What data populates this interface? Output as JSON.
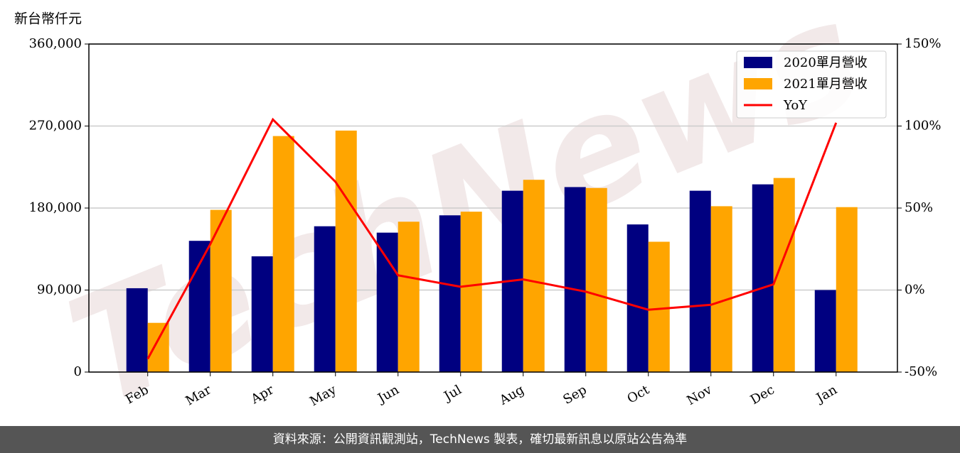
{
  "chart_data": {
    "type": "bar",
    "ylabel": "新台幣仟元",
    "watermark": "TechNews",
    "categories": [
      "Feb",
      "Mar",
      "Apr",
      "May",
      "Jun",
      "Jul",
      "Aug",
      "Sep",
      "Oct",
      "Nov",
      "Dec",
      "Jan"
    ],
    "series": [
      {
        "name": "2020單月營收",
        "color": "#000080",
        "values": [
          92000,
          144000,
          127000,
          160000,
          153000,
          172000,
          199000,
          203000,
          162000,
          199000,
          206000,
          90000
        ]
      },
      {
        "name": "2021單月營收",
        "color": "#ffa500",
        "values": [
          54000,
          178000,
          259000,
          265000,
          165000,
          176000,
          211000,
          202000,
          143000,
          182000,
          213000,
          181000
        ]
      },
      {
        "name": "YoY",
        "type": "line",
        "axis": "y2",
        "color": "#ff0000",
        "values": [
          -42,
          28,
          104,
          66,
          9,
          2,
          6.5,
          -1,
          -12,
          -9,
          3.5,
          102
        ]
      }
    ],
    "ylim": [
      0,
      360000
    ],
    "yticks": [
      0,
      {
        "value": 90000,
        "label": "90,000"
      },
      {
        "value": 180000,
        "label": "180,000"
      },
      {
        "value": 270000,
        "label": "270,000"
      },
      {
        "value": 360000,
        "label": "360,000"
      }
    ],
    "y2lim": [
      -50,
      150
    ],
    "y2ticks": [
      {
        "value": -50,
        "label": "-50%"
      },
      {
        "value": 0,
        "label": "0%"
      },
      {
        "value": 50,
        "label": "50%"
      },
      {
        "value": 100,
        "label": "100%"
      },
      {
        "value": 150,
        "label": "150%"
      }
    ],
    "grid": true,
    "legend": "upper right"
  },
  "footer": "資料來源：公開資訊觀測站，TechNews 製表，確切最新訊息以原站公告為準"
}
